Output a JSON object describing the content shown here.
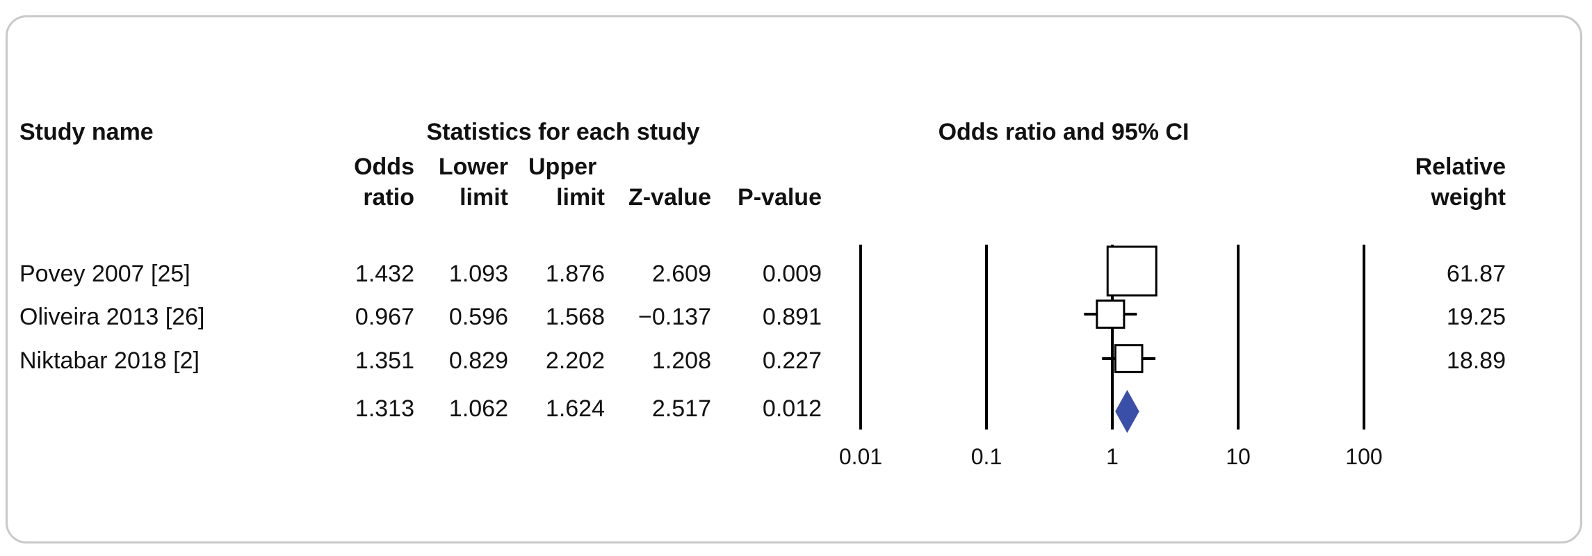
{
  "chart_data": {
    "type": "forest",
    "headers": {
      "study_name": "Study name",
      "stats_group": "Statistics for each study",
      "plot_group": "Odds ratio and 95% CI",
      "odds_ratio": [
        "Odds",
        "ratio"
      ],
      "lower_limit": [
        "Lower",
        "limit"
      ],
      "upper_limit": [
        "Upper",
        "limit"
      ],
      "z_value": "Z-value",
      "p_value": "P-value",
      "relative_weight": [
        "Relative",
        "weight"
      ]
    },
    "studies": [
      {
        "name": "Povey 2007 [25]",
        "odds_ratio": "1.432",
        "lower": "1.093",
        "upper": "1.876",
        "z": "2.609",
        "p": "0.009",
        "weight": "61.87"
      },
      {
        "name": "Oliveira 2013 [26]",
        "odds_ratio": "0.967",
        "lower": "0.596",
        "upper": "1.568",
        "z": "−0.137",
        "p": "0.891",
        "weight": "19.25"
      },
      {
        "name": "Niktabar 2018 [2]",
        "odds_ratio": "1.351",
        "lower": "0.829",
        "upper": "2.202",
        "z": "1.208",
        "p": "0.227",
        "weight": "18.89"
      }
    ],
    "summary": {
      "odds_ratio": "1.313",
      "lower": "1.062",
      "upper": "1.624",
      "z": "2.517",
      "p": "0.012"
    },
    "x_axis": {
      "scale": "log",
      "ticks": [
        0.01,
        0.1,
        1,
        10,
        100
      ],
      "tick_labels": [
        "0.01",
        "0.1",
        "1",
        "10",
        "100"
      ]
    },
    "diamond_color": "#3a4fa8"
  }
}
